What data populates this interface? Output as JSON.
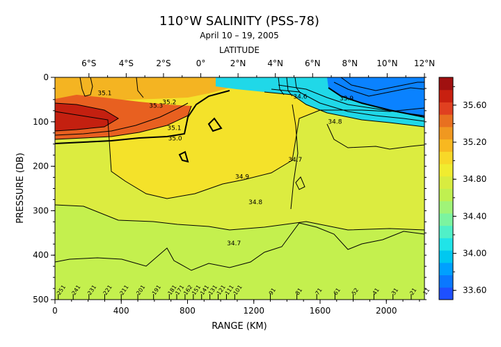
{
  "chart_data": {
    "type": "heatmap",
    "title": "110°W SALINITY (PSS-78)",
    "subtitle": "April 10 – 19, 2005",
    "top_axis_label": "LATITUDE",
    "top_ticks": [
      {
        "label": "6°S",
        "x": 205
      },
      {
        "label": "4°S",
        "x": 430
      },
      {
        "label": "2°S",
        "x": 655
      },
      {
        "label": "0°",
        "x": 880
      },
      {
        "label": "2°N",
        "x": 1105
      },
      {
        "label": "4°N",
        "x": 1330
      },
      {
        "label": "6°N",
        "x": 1555
      },
      {
        "label": "8°N",
        "x": 1780
      },
      {
        "label": "10°N",
        "x": 2005
      },
      {
        "label": "12°N",
        "x": 2230
      }
    ],
    "xlabel": "RANGE (KM)",
    "ylabel": "PRESSURE (DB)",
    "xlim": [
      0,
      2230
    ],
    "ylim": [
      0,
      500
    ],
    "x_ticks": [
      "0",
      "400",
      "800",
      "1200",
      "1600",
      "2000"
    ],
    "y_ticks": [
      "0",
      "100",
      "200",
      "300",
      "400",
      "500"
    ],
    "colorbar": {
      "range": [
        33.5,
        35.9
      ],
      "tick_labels": [
        "35.60",
        "35.20",
        "34.80",
        "34.40",
        "34.00",
        "33.60"
      ],
      "colors": [
        "#1e50ff",
        "#0a78ff",
        "#00a0ff",
        "#00c8f0",
        "#20e4e8",
        "#50f0c8",
        "#7cf4a0",
        "#a0f478",
        "#c0f050",
        "#d8ec40",
        "#f0ec30",
        "#f8d828",
        "#f8b820",
        "#f09820",
        "#e87020",
        "#e04020",
        "#c82010",
        "#a01010"
      ]
    },
    "contour_labels": [
      {
        "text": "35.1",
        "x": 300,
        "p": 40
      },
      {
        "text": "35.3",
        "x": 610,
        "p": 68
      },
      {
        "text": "35.2",
        "x": 690,
        "p": 60
      },
      {
        "text": "35.1",
        "x": 720,
        "p": 118
      },
      {
        "text": "35.0",
        "x": 725,
        "p": 142
      },
      {
        "text": "34.9",
        "x": 1130,
        "p": 228
      },
      {
        "text": "34.8",
        "x": 1210,
        "p": 285
      },
      {
        "text": "34.7",
        "x": 1080,
        "p": 378
      },
      {
        "text": "34.7",
        "x": 1450,
        "p": 190
      },
      {
        "text": "34.6",
        "x": 1480,
        "p": 48
      },
      {
        "text": "34.8",
        "x": 1690,
        "p": 104
      },
      {
        "text": "33.9",
        "x": 1760,
        "p": 52
      }
    ],
    "stations": [
      "251",
      "241",
      "231",
      "221",
      "211",
      "201",
      "191",
      "181",
      "171",
      "162",
      "151",
      "141",
      "131",
      "121",
      "111",
      "101",
      "91",
      "81",
      "71",
      "61",
      "52",
      "41",
      "31",
      "21",
      "11"
    ],
    "station_km": [
      20,
      110,
      205,
      300,
      400,
      500,
      595,
      690,
      735,
      785,
      835,
      885,
      935,
      985,
      1035,
      1085,
      1300,
      1460,
      1580,
      1690,
      1800,
      1925,
      2040,
      2150,
      2230
    ]
  }
}
